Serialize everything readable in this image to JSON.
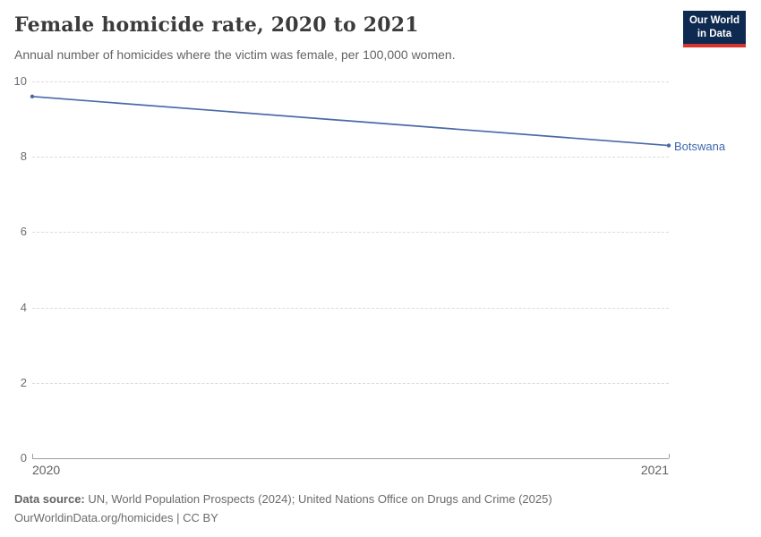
{
  "header": {
    "title": "Female homicide rate, 2020 to 2021",
    "subtitle": "Annual number of homicides where the victim was female, per 100,000 women.",
    "logo_line1": "Our World",
    "logo_line2": "in Data"
  },
  "chart_data": {
    "type": "line",
    "title": "Female homicide rate, 2020 to 2021",
    "subtitle": "Annual number of homicides where the victim was female, per 100,000 women.",
    "x": [
      2020,
      2021
    ],
    "series": [
      {
        "name": "Botswana",
        "values": [
          9.6,
          8.3
        ]
      }
    ],
    "ylim": [
      0,
      10
    ],
    "yticks": [
      0,
      2,
      4,
      6,
      8,
      10
    ],
    "xtick_labels": [
      "2020",
      "2021"
    ],
    "grid": "horizontal-dashed",
    "legend_position": "label-at-line-end"
  },
  "colors": {
    "series_line": "#4a69a8",
    "series_label": "#3e68ae",
    "gridline": "#dcdcdc",
    "axis": "#9f9f9f",
    "logo_bg": "#0e2a50",
    "logo_accent": "#d8352f"
  },
  "footer": {
    "source_label": "Data source:",
    "source_text": " UN, World Population Prospects (2024); United Nations Office on Drugs and Crime (2025)",
    "link_line": "OurWorldinData.org/homicides | CC BY"
  }
}
